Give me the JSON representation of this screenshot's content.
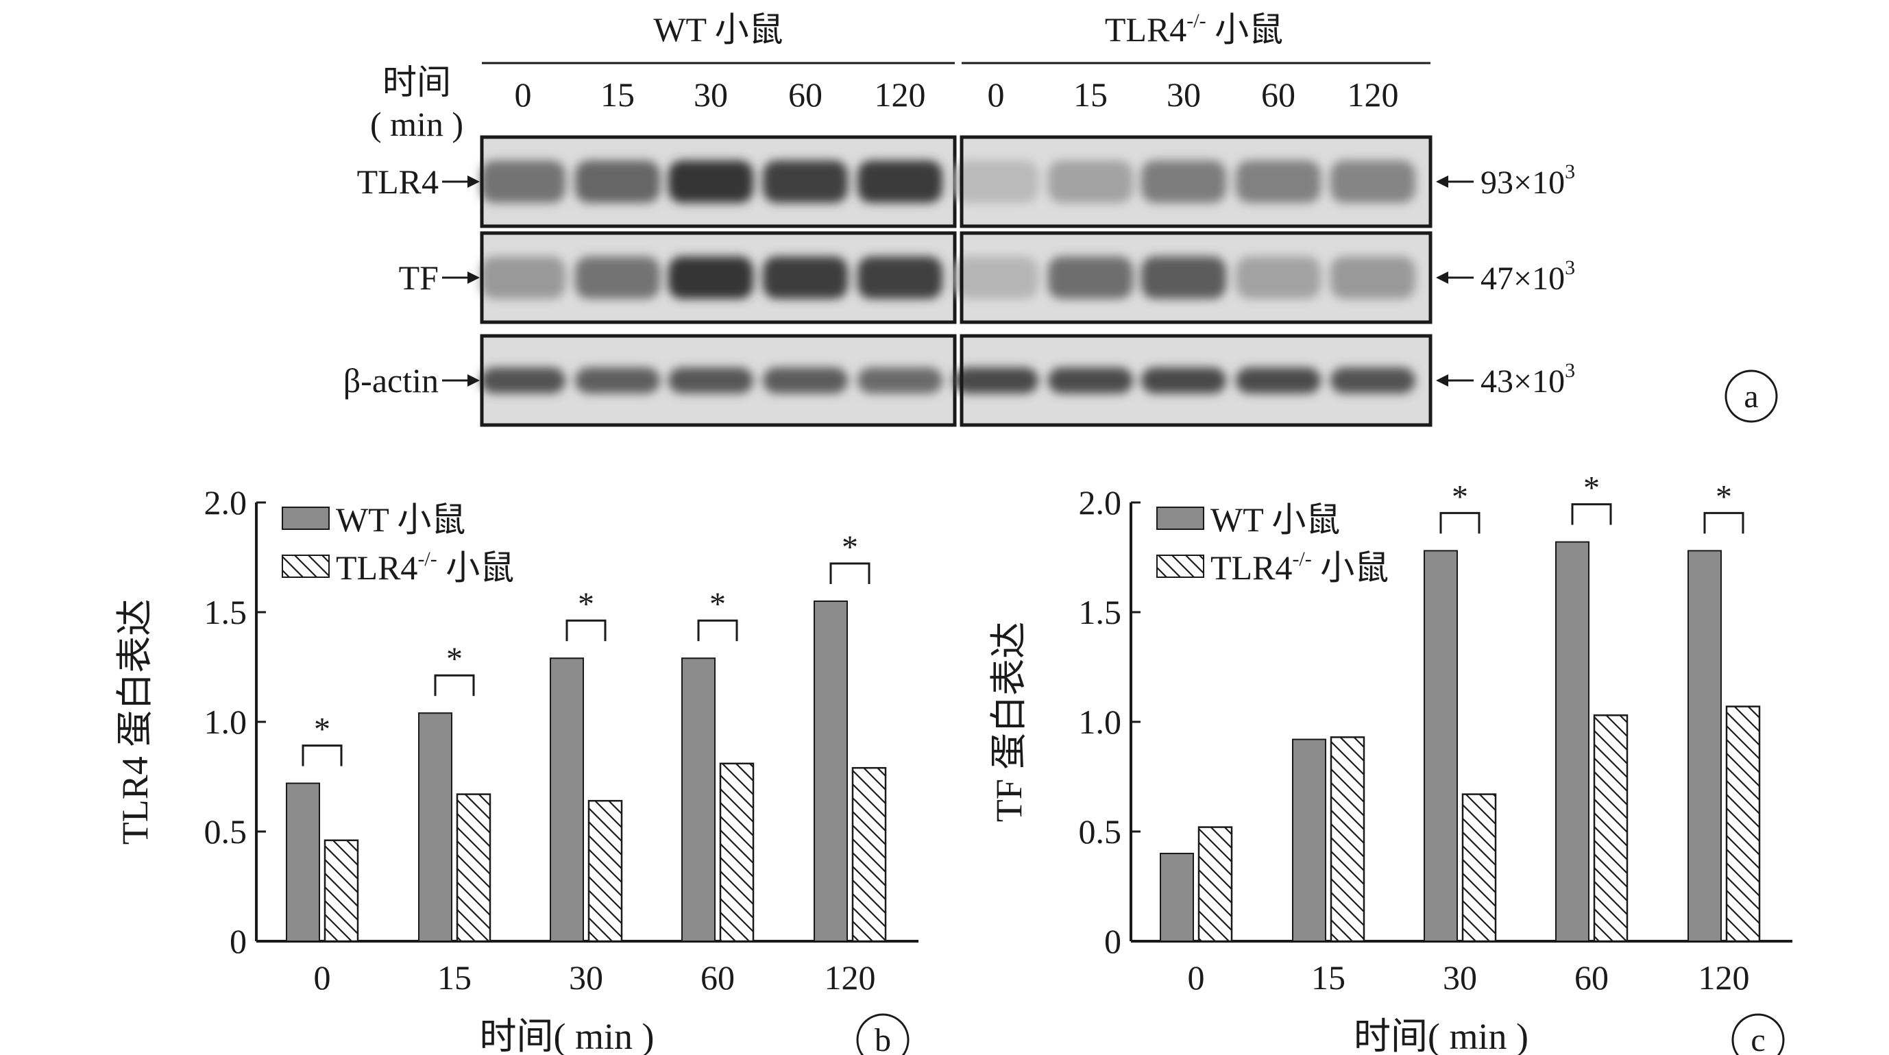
{
  "western_blot": {
    "groups": [
      {
        "label": "WT 小鼠",
        "lanes": [
          "0",
          "15",
          "30",
          "60",
          "120"
        ]
      },
      {
        "label": "TLR4",
        "label_sup": "-/-",
        "label_suffix": " 小鼠",
        "lanes": [
          "0",
          "15",
          "30",
          "60",
          "120"
        ]
      }
    ],
    "time_label_line1": "时间",
    "time_label_line2": "( min )",
    "rows": [
      {
        "label": "TLR4",
        "mw_label": "93×10",
        "mw_sup": "3",
        "intensity": [
          [
            0.55,
            0.62,
            0.88,
            0.82,
            0.85
          ],
          [
            0.18,
            0.3,
            0.5,
            0.48,
            0.46
          ]
        ]
      },
      {
        "label": "TF",
        "mw_label": "47×10",
        "mw_sup": "3",
        "intensity": [
          [
            0.35,
            0.55,
            0.88,
            0.84,
            0.82
          ],
          [
            0.2,
            0.58,
            0.68,
            0.3,
            0.35
          ]
        ]
      },
      {
        "label": "β-actin",
        "mw_label": "43×10",
        "mw_sup": "3",
        "intensity": [
          [
            0.72,
            0.66,
            0.7,
            0.68,
            0.6
          ],
          [
            0.78,
            0.76,
            0.78,
            0.76,
            0.72
          ]
        ]
      }
    ],
    "panel_label": "a"
  },
  "chart_data": [
    {
      "type": "bar",
      "panel_label": "b",
      "categories": [
        "0",
        "15",
        "30",
        "60",
        "120"
      ],
      "series": [
        {
          "name": "WT 小鼠",
          "name_sup": "",
          "values": [
            0.72,
            1.04,
            1.29,
            1.29,
            1.55
          ]
        },
        {
          "name": "TLR4",
          "name_sup": "-/-",
          "name_suffix": " 小鼠",
          "values": [
            0.46,
            0.67,
            0.64,
            0.81,
            0.79
          ]
        }
      ],
      "ylabel": "TLR4 蛋白表达",
      "xlabel": "时间( min )",
      "ylim": [
        0,
        2.0
      ],
      "yticks": [
        "0",
        "0.5",
        "1.0",
        "1.5",
        "2.0"
      ],
      "significance": [
        true,
        true,
        true,
        true,
        true
      ],
      "significance_mark": "*",
      "legend_position": "top-left"
    },
    {
      "type": "bar",
      "panel_label": "c",
      "categories": [
        "0",
        "15",
        "30",
        "60",
        "120"
      ],
      "series": [
        {
          "name": "WT 小鼠",
          "name_sup": "",
          "values": [
            0.4,
            0.92,
            1.78,
            1.82,
            1.78
          ]
        },
        {
          "name": "TLR4",
          "name_sup": "-/-",
          "name_suffix": " 小鼠",
          "values": [
            0.52,
            0.93,
            0.67,
            1.03,
            1.07
          ]
        }
      ],
      "ylabel": "TF 蛋白表达",
      "xlabel": "时间( min )",
      "ylim": [
        0,
        2.0
      ],
      "yticks": [
        "0",
        "0.5",
        "1.0",
        "1.5",
        "2.0"
      ],
      "significance": [
        false,
        false,
        true,
        true,
        true
      ],
      "significance_mark": "*",
      "legend_position": "top-left"
    }
  ],
  "colors": {
    "wt_bar": "#8c8c8c",
    "ko_hatch": "#1a1a1a",
    "axis": "#1a1a1a"
  }
}
